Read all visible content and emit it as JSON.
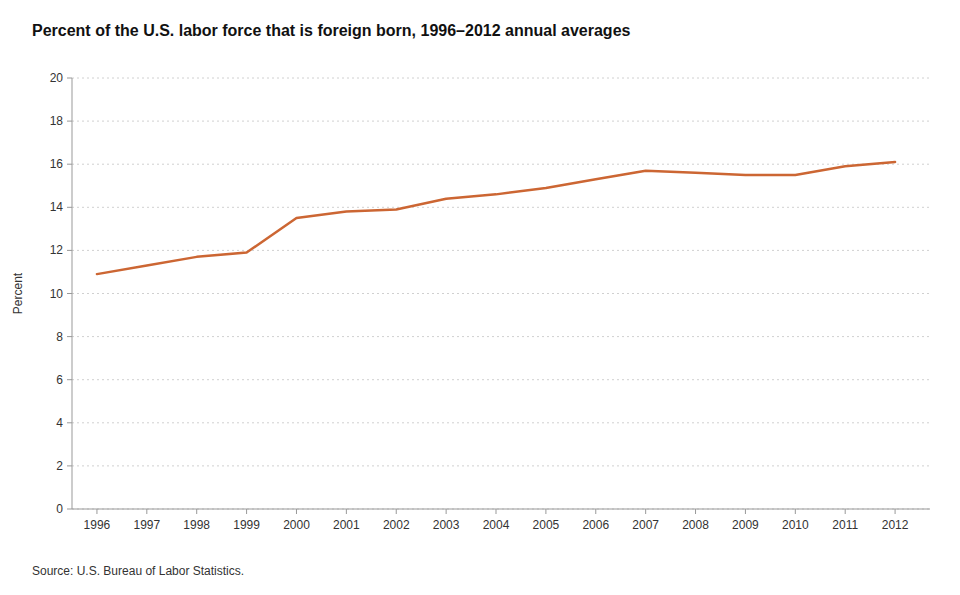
{
  "chart_data": {
    "type": "line",
    "title": "Percent of the U.S. labor force that is foreign born, 1996–2012 annual averages",
    "y_label": "Percent",
    "source": "Source: U.S. Bureau of Labor Statistics.",
    "x": [
      1996,
      1997,
      1998,
      1999,
      2000,
      2001,
      2002,
      2003,
      2004,
      2005,
      2006,
      2007,
      2008,
      2009,
      2010,
      2011,
      2012
    ],
    "values": [
      10.9,
      11.3,
      11.7,
      11.9,
      13.5,
      13.8,
      13.9,
      14.4,
      14.6,
      14.9,
      15.3,
      15.7,
      15.6,
      15.5,
      15.5,
      15.9,
      16.1
    ],
    "color": "#CC6633",
    "xlim": [
      1995.5,
      2012.7
    ],
    "xticks": [
      1996,
      1997,
      1998,
      1999,
      2000,
      2001,
      2002,
      2003,
      2004,
      2005,
      2006,
      2007,
      2008,
      2009,
      2010,
      2011,
      2012
    ],
    "ylim": [
      0,
      20
    ],
    "yticks": [
      0,
      2,
      4,
      6,
      8,
      10,
      12,
      14,
      16,
      18,
      20
    ],
    "grid": true
  }
}
